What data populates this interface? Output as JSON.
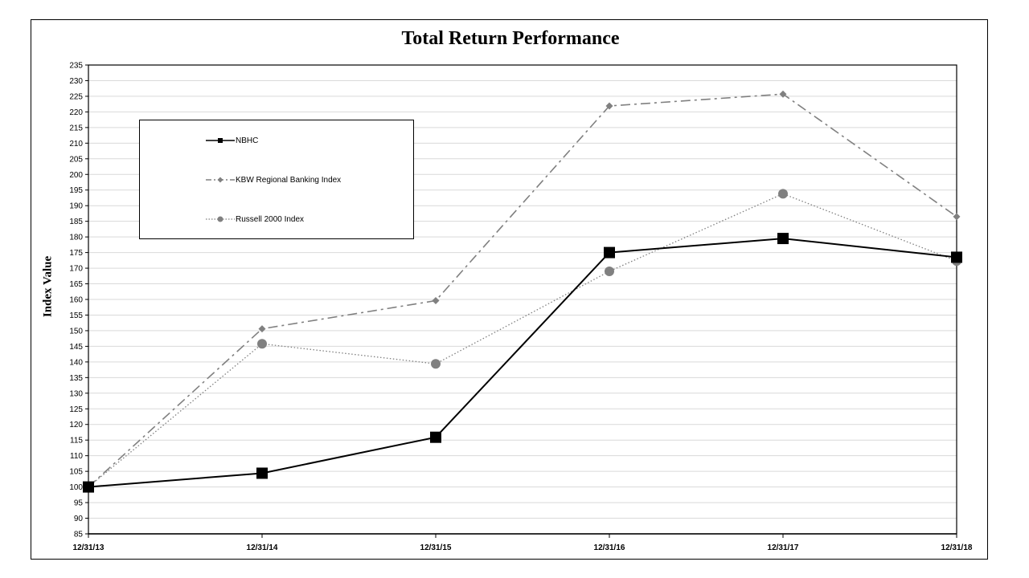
{
  "chart_data": {
    "type": "line",
    "title": "Total Return Performance",
    "xlabel": "",
    "ylabel": "Index Value",
    "categories": [
      "12/31/13",
      "12/31/14",
      "12/31/15",
      "12/31/16",
      "12/31/17",
      "12/31/18"
    ],
    "ylim": [
      85,
      235
    ],
    "ytick_step": 5,
    "grid": true,
    "legend_position": "top-left",
    "series": [
      {
        "name": "NBHC",
        "values": [
          100.0,
          104.4,
          115.9,
          175.0,
          179.5,
          173.5
        ],
        "color": "#000000",
        "line_style": "solid",
        "marker": "square"
      },
      {
        "name": "KBW Regional Banking Index",
        "values": [
          100.0,
          150.6,
          159.6,
          221.9,
          225.7,
          186.5
        ],
        "color": "#808080",
        "line_style": "dash-dot",
        "marker": "diamond"
      },
      {
        "name": "Russell 2000 Index",
        "values": [
          100.0,
          145.8,
          139.4,
          169.0,
          193.8,
          172.3
        ],
        "color": "#808080",
        "line_style": "dotted",
        "marker": "circle"
      }
    ]
  }
}
